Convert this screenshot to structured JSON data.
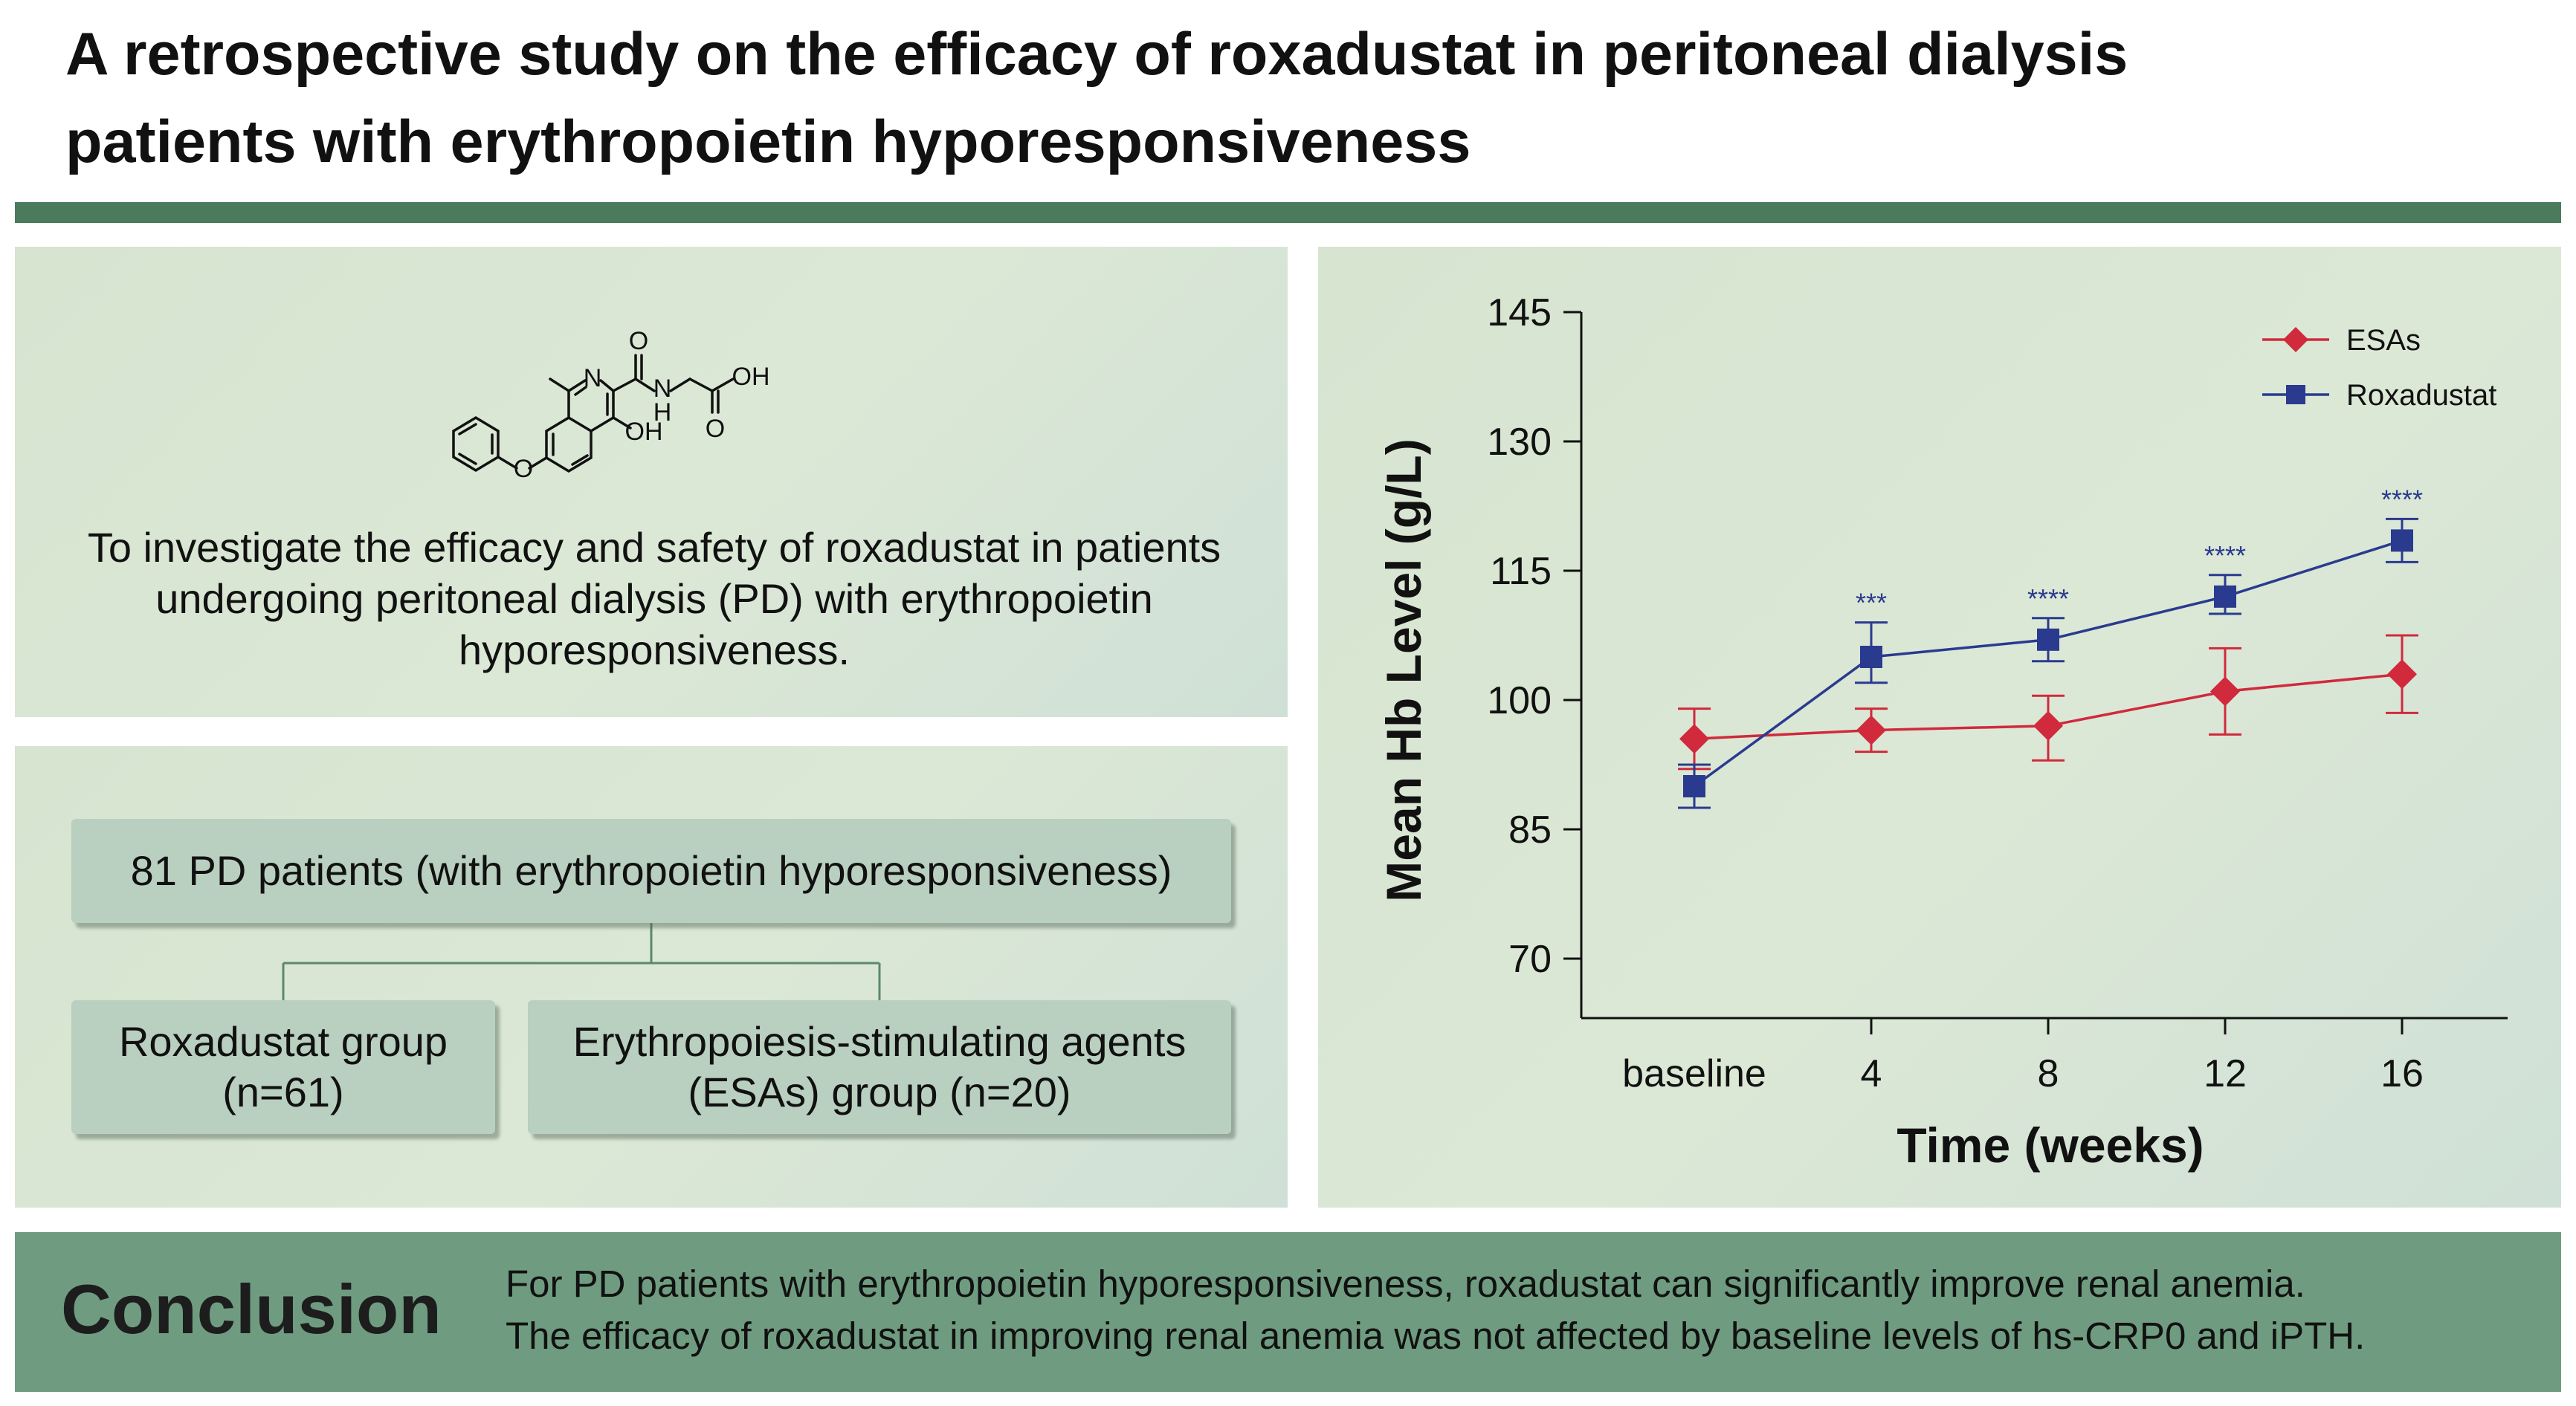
{
  "header": {
    "title_line1": "A retrospective study on the efficacy of roxadustat in peritoneal dialysis",
    "title_line2": "patients with erythropoietin hyporesponsiveness"
  },
  "structure": {
    "labels": {
      "o1": "O",
      "n_ring": "N",
      "nh_n": "N",
      "nh_h": "H",
      "oh1": "OH",
      "o2": "O",
      "oh2": "OH",
      "o_ether": "O"
    }
  },
  "aim": {
    "line1": "To investigate the efficacy and safety of roxadustat in patients",
    "line2": "undergoing peritoneal dialysis (PD) with erythropoietin",
    "line3": "hyporesponsiveness."
  },
  "flow": {
    "top": "81 PD patients (with erythropoietin hyporesponsiveness)",
    "rox_line1": "Roxadustat group",
    "rox_line2": "(n=61)",
    "esa_line1": "Erythropoiesis-stimulating agents",
    "esa_line2": "(ESAs) group (n=20)"
  },
  "chart_data": {
    "type": "line",
    "xlabel": "Time (weeks)",
    "ylabel": "Mean Hb Level (g/L)",
    "categories": [
      "baseline",
      "4",
      "8",
      "12",
      "16"
    ],
    "ylim": [
      70,
      145
    ],
    "yticks": [
      70,
      85,
      100,
      115,
      130,
      145
    ],
    "legend_position": "top-right",
    "grid": false,
    "series": [
      {
        "name": "ESAs",
        "color": "#d02a3c",
        "marker": "diamond",
        "values": [
          95.5,
          96.5,
          97,
          101,
          103
        ],
        "err_low": [
          92,
          94,
          93,
          96,
          98.5
        ],
        "err_high": [
          99,
          99,
          100.5,
          106,
          107.5
        ]
      },
      {
        "name": "Roxadustat",
        "color": "#2a3b8f",
        "marker": "square",
        "values": [
          90,
          105,
          107,
          112,
          118.5
        ],
        "err_low": [
          87.5,
          102,
          104.5,
          110,
          116
        ],
        "err_high": [
          92.5,
          109,
          109.5,
          114.5,
          121
        ],
        "significance": [
          "",
          "***",
          "****",
          "****",
          "****"
        ]
      }
    ]
  },
  "conclusion": {
    "heading": "Conclusion",
    "line1": "For PD patients with erythropoietin hyporesponsiveness, roxadustat can significantly improve renal anemia.",
    "line2": "The efficacy of roxadustat in improving renal anemia was not affected by baseline levels of hs-CRP0 and iPTH."
  },
  "colors": {
    "rule": "#4b7a5c",
    "panel": "#d6e4d0",
    "box": "#b9cfbf",
    "conclusion_band": "#6f9c80",
    "esas": "#d02a3c",
    "roxadustat": "#2a3b8f"
  }
}
